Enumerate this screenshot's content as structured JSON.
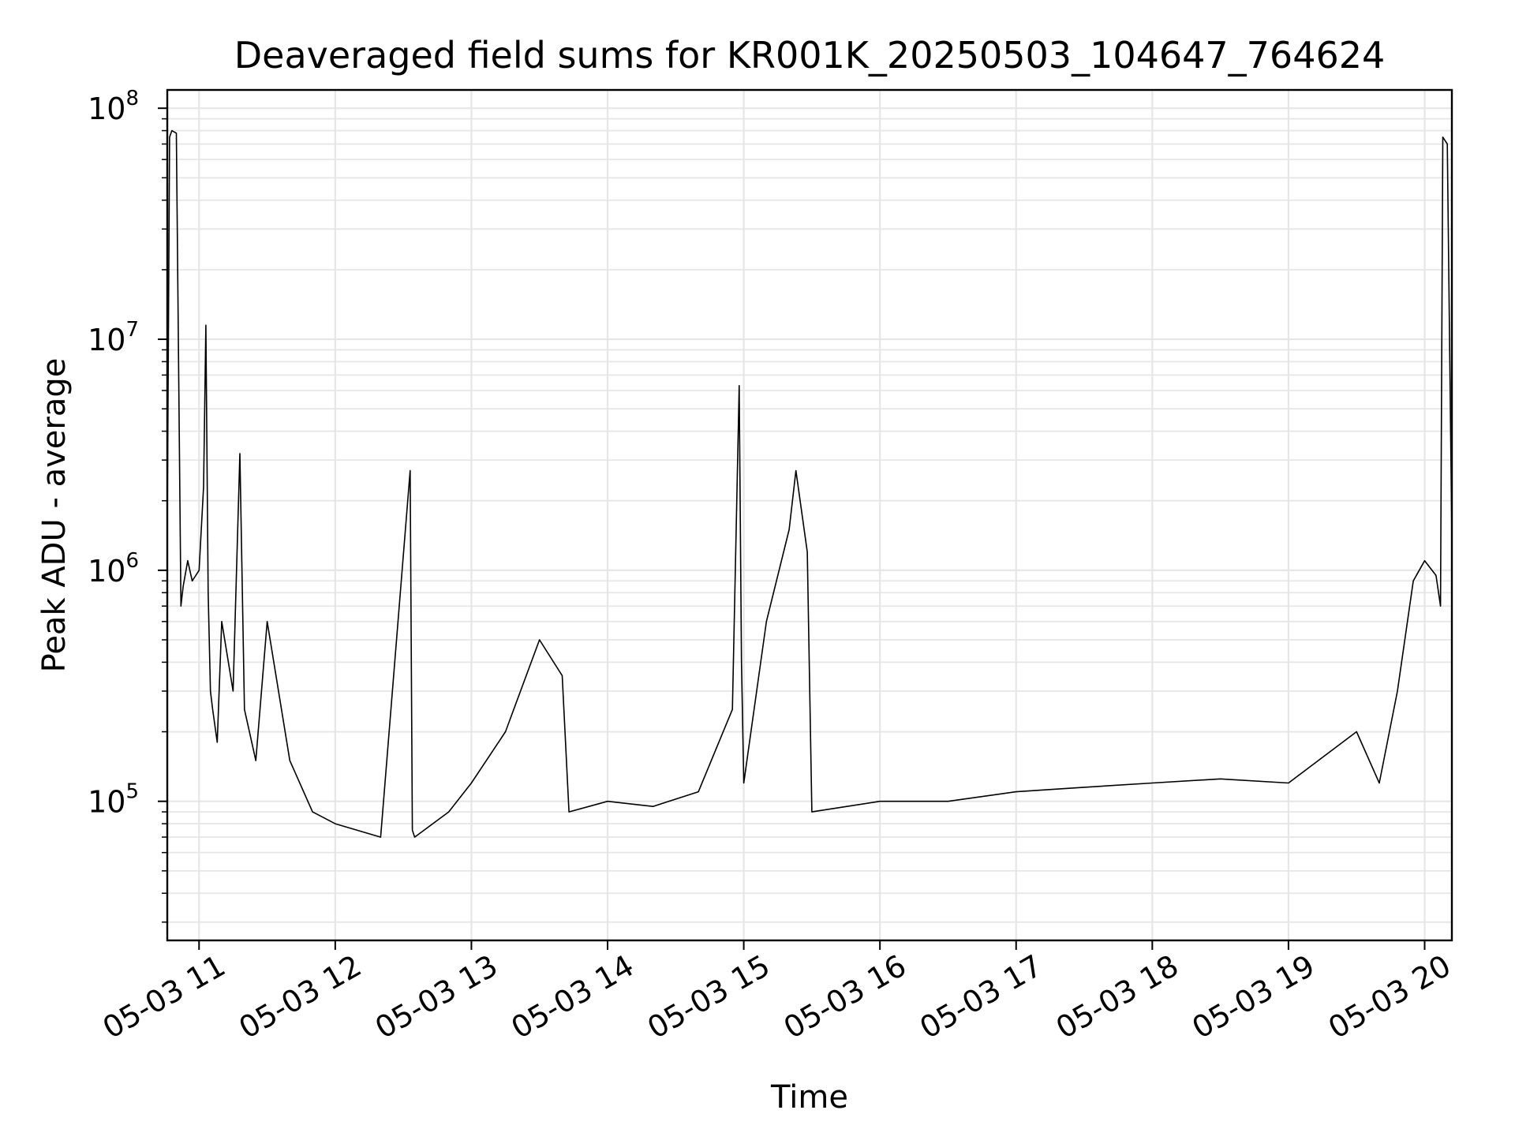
{
  "chart_data": {
    "type": "line",
    "title": "Deaveraged field sums for KR001K_20250503_104647_764624",
    "xlabel": "Time",
    "ylabel": "Peak ADU - average",
    "yscale": "log",
    "grid": true,
    "legend": "none",
    "line_color": "#000000",
    "grid_color": "#e6e6e6",
    "xlim": [
      "05-03 10:46",
      "05-03 20:12"
    ],
    "ylim": [
      25000,
      120000000
    ],
    "x_ticks": [
      "05-03 11",
      "05-03 12",
      "05-03 13",
      "05-03 14",
      "05-03 15",
      "05-03 16",
      "05-03 17",
      "05-03 18",
      "05-03 19",
      "05-03 20"
    ],
    "y_ticks": [
      {
        "base": "10",
        "exp": "5",
        "value": 100000
      },
      {
        "base": "10",
        "exp": "6",
        "value": 1000000
      },
      {
        "base": "10",
        "exp": "7",
        "value": 10000000
      },
      {
        "base": "10",
        "exp": "8",
        "value": 100000000
      }
    ],
    "series": [
      {
        "x": [
          "05-03 10:46",
          "05-03 10:47",
          "05-03 10:48",
          "05-03 10:50",
          "05-03 10:52",
          "05-03 10:53",
          "05-03 10:55",
          "05-03 10:57",
          "05-03 11:00",
          "05-03 11:02",
          "05-03 11:03",
          "05-03 11:04",
          "05-03 11:05",
          "05-03 11:06",
          "05-03 11:08",
          "05-03 11:10",
          "05-03 11:15",
          "05-03 11:18",
          "05-03 11:20",
          "05-03 11:25",
          "05-03 11:30",
          "05-03 11:40",
          "05-03 11:50",
          "05-03 12:00",
          "05-03 12:20",
          "05-03 12:33",
          "05-03 12:34",
          "05-03 12:35",
          "05-03 12:50",
          "05-03 13:00",
          "05-03 13:15",
          "05-03 13:30",
          "05-03 13:40",
          "05-03 13:43",
          "05-03 14:00",
          "05-03 14:20",
          "05-03 14:40",
          "05-03 14:55",
          "05-03 14:58",
          "05-03 14:59",
          "05-03 15:00",
          "05-03 15:10",
          "05-03 15:20",
          "05-03 15:23",
          "05-03 15:28",
          "05-03 15:30",
          "05-03 16:00",
          "05-03 16:30",
          "05-03 17:00",
          "05-03 17:30",
          "05-03 18:00",
          "05-03 18:30",
          "05-03 19:00",
          "05-03 19:30",
          "05-03 19:40",
          "05-03 19:48",
          "05-03 19:55",
          "05-03 20:00",
          "05-03 20:05",
          "05-03 20:07",
          "05-03 20:08",
          "05-03 20:10",
          "05-03 20:12"
        ],
        "y": [
          1500000,
          75000000,
          80000000,
          78000000,
          700000,
          850000,
          1100000,
          900000,
          1000000,
          2300000,
          11500000,
          800000,
          300000,
          250000,
          180000,
          600000,
          300000,
          3200000,
          250000,
          150000,
          600000,
          150000,
          90000,
          80000,
          70000,
          2700000,
          75000,
          70000,
          90000,
          120000,
          200000,
          500000,
          350000,
          90000,
          100000,
          95000,
          110000,
          250000,
          6300000,
          400000,
          120000,
          600000,
          1500000,
          2700000,
          1200000,
          90000,
          100000,
          100000,
          110000,
          115000,
          120000,
          125000,
          120000,
          200000,
          120000,
          300000,
          900000,
          1100000,
          950000,
          700000,
          75000000,
          70000000,
          1350000
        ]
      }
    ]
  }
}
